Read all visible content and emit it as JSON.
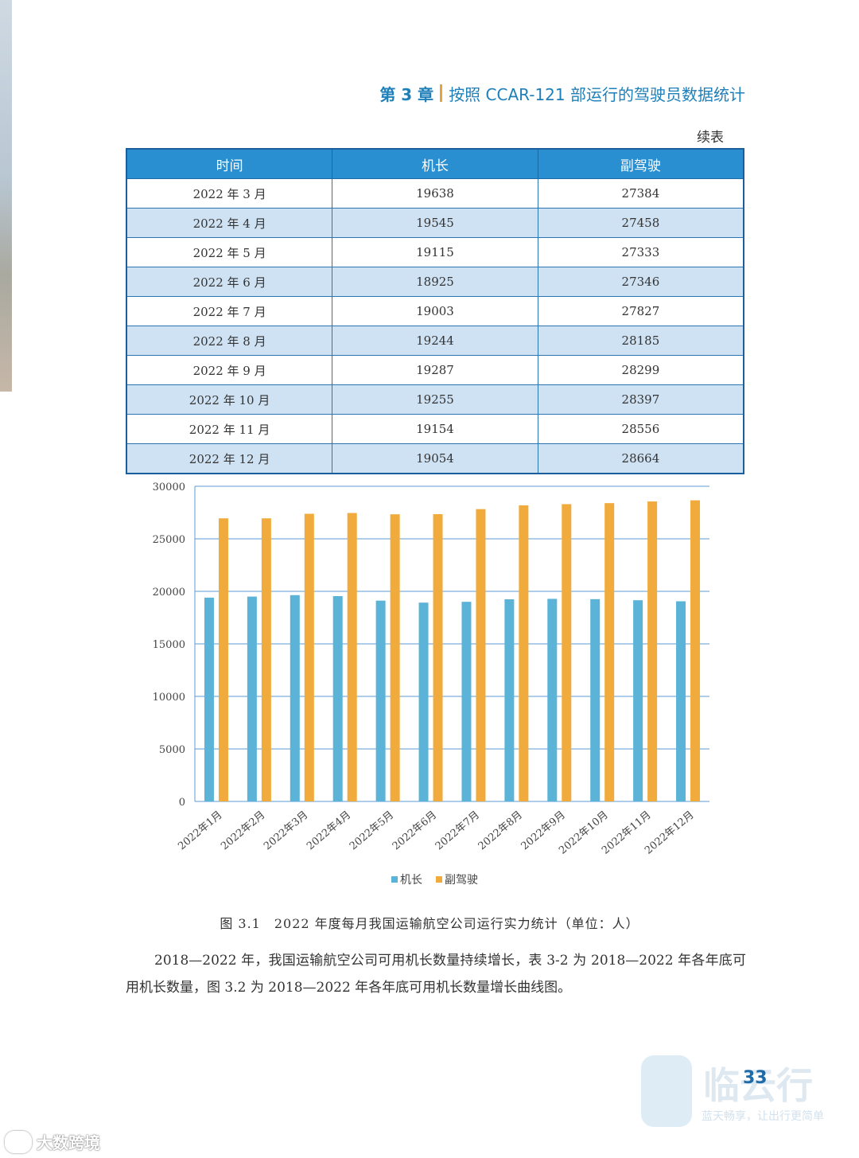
{
  "header": {
    "chapter": "第 3 章",
    "title": "按照 CCAR-121 部运行的驾驶员数据统计"
  },
  "table": {
    "caption": "续表",
    "headers": [
      "时间",
      "机长",
      "副驾驶"
    ],
    "rows": [
      [
        "2022 年 3 月",
        "19638",
        "27384"
      ],
      [
        "2022 年 4 月",
        "19545",
        "27458"
      ],
      [
        "2022 年 5 月",
        "19115",
        "27333"
      ],
      [
        "2022 年 6 月",
        "18925",
        "27346"
      ],
      [
        "2022 年 7 月",
        "19003",
        "27827"
      ],
      [
        "2022 年 8 月",
        "19244",
        "28185"
      ],
      [
        "2022 年 9 月",
        "19287",
        "28299"
      ],
      [
        "2022 年 10 月",
        "19255",
        "28397"
      ],
      [
        "2022 年 11 月",
        "19154",
        "28556"
      ],
      [
        "2022 年 12 月",
        "19054",
        "28664"
      ]
    ]
  },
  "chart_data": {
    "type": "bar",
    "categories": [
      "2022年1月",
      "2022年2月",
      "2022年3月",
      "2022年4月",
      "2022年5月",
      "2022年6月",
      "2022年7月",
      "2022年8月",
      "2022年9月",
      "2022年10月",
      "2022年11月",
      "2022年12月"
    ],
    "series": [
      {
        "name": "机长",
        "color": "#5bb3d8",
        "values": [
          19400,
          19500,
          19638,
          19545,
          19115,
          18925,
          19003,
          19244,
          19287,
          19255,
          19154,
          19054
        ]
      },
      {
        "name": "副驾驶",
        "color": "#f0ab3c",
        "values": [
          26950,
          26950,
          27384,
          27458,
          27333,
          27346,
          27827,
          28185,
          28299,
          28397,
          28556,
          28664
        ]
      }
    ],
    "yticks": [
      "0",
      "5000",
      "10000",
      "15000",
      "20000",
      "25000",
      "30000"
    ],
    "ylim": [
      0,
      30000
    ],
    "grid": true,
    "legend": "bottom"
  },
  "figure_caption": "图 3.1　2022 年度每月我国运输航空公司运行实力统计（单位：人）",
  "body_text": "2018—2022 年，我国运输航空公司可用机长数量持续增长，表 3-2 为 2018—2022 年各年底可用机长数量，图 3.2 为 2018—2022 年各年底可用机长数量增长曲线图。",
  "page_number": "33",
  "logo": {
    "name": "临云行",
    "slogan": "蓝天畅享，让出行更简单"
  },
  "watermark": "大数跨境"
}
